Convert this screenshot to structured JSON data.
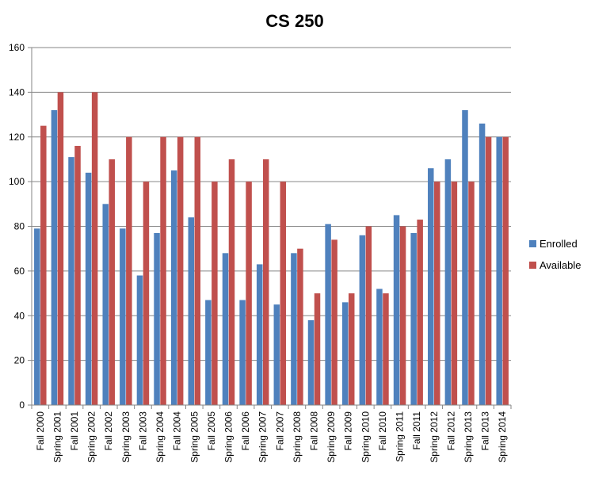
{
  "chart_data": {
    "type": "bar",
    "title": "CS 250",
    "xlabel": "",
    "ylabel": "",
    "ylim": [
      0,
      160
    ],
    "yticks": [
      0,
      20,
      40,
      60,
      80,
      100,
      120,
      140,
      160
    ],
    "grid": true,
    "legend_position": "right",
    "categories": [
      "Fall 2000",
      "Spring 2001",
      "Fall 2001",
      "Spring 2002",
      "Fall 2002",
      "Spring 2003",
      "Fall 2003",
      "Spring 2004",
      "Fall 2004",
      "Spring 2005",
      "Fall 2005",
      "Spring 2006",
      "Fall 2006",
      "Spring 2007",
      "Fall 2007",
      "Spring 2008",
      "Fall 2008",
      "Spring 2009",
      "Fall 2009",
      "Spring 2010",
      "Fall 2010",
      "Spring 2011",
      "Fall 2011",
      "Spring 2012",
      "Fall 2012",
      "Spring 2013",
      "Fall 2013",
      "Spring 2014"
    ],
    "series": [
      {
        "name": "Enrolled",
        "color": "#4F81BD",
        "values": [
          79,
          132,
          111,
          104,
          90,
          79,
          58,
          77,
          105,
          84,
          47,
          68,
          47,
          63,
          45,
          68,
          38,
          81,
          46,
          76,
          52,
          85,
          77,
          106,
          110,
          132,
          126,
          120
        ]
      },
      {
        "name": "Available",
        "color": "#C0504D",
        "values": [
          125,
          140,
          116,
          140,
          110,
          120,
          100,
          120,
          120,
          120,
          100,
          110,
          100,
          110,
          100,
          70,
          50,
          74,
          50,
          80,
          50,
          80,
          83,
          100,
          100,
          100,
          120,
          120
        ]
      }
    ]
  }
}
